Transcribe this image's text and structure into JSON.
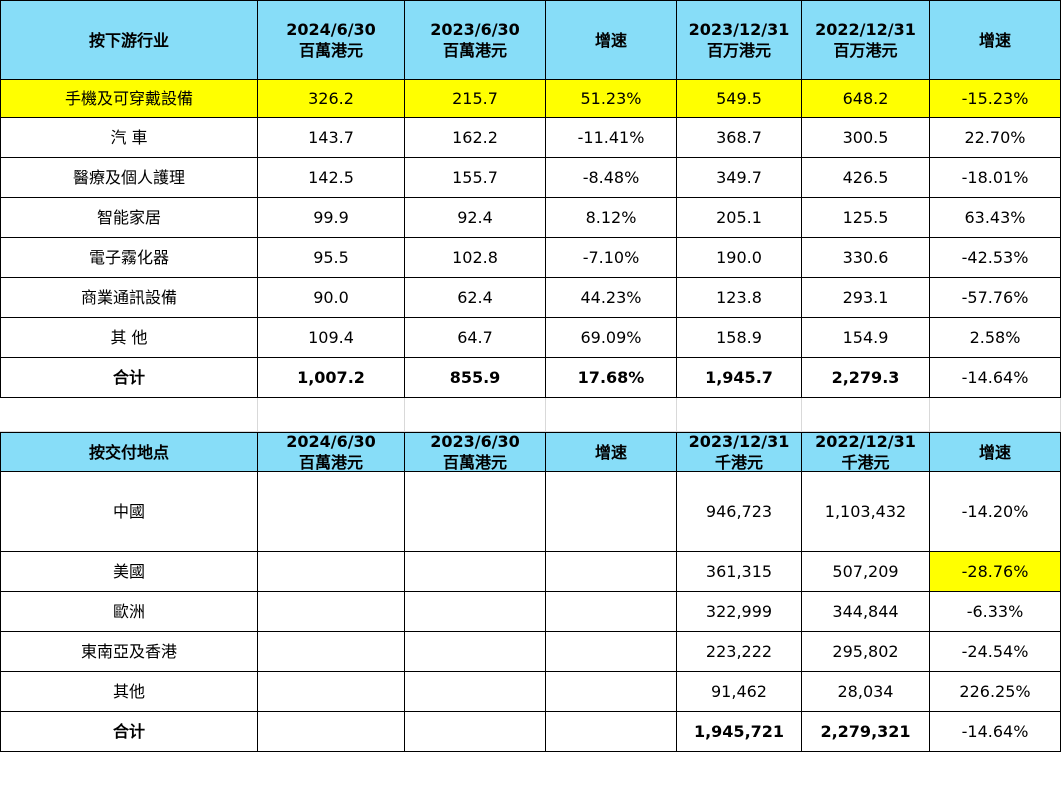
{
  "table1": {
    "headers": [
      {
        "l1": "按下游行业",
        "l2": ""
      },
      {
        "l1": "2024/6/30",
        "l2": "百萬港元"
      },
      {
        "l1": "2023/6/30",
        "l2": "百萬港元"
      },
      {
        "l1": "增速",
        "l2": ""
      },
      {
        "l1": "2023/12/31",
        "l2": "百万港元"
      },
      {
        "l1": "2022/12/31",
        "l2": "百万港元"
      },
      {
        "l1": "增速",
        "l2": ""
      }
    ],
    "rows": [
      {
        "cells": [
          "手機及可穿戴設備",
          "326.2",
          "215.7",
          "51.23%",
          "549.5",
          "648.2",
          "-15.23%"
        ]
      },
      {
        "cells": [
          "汽 車",
          "143.7",
          "162.2",
          "-11.41%",
          "368.7",
          "300.5",
          "22.70%"
        ]
      },
      {
        "cells": [
          "醫療及個人護理",
          "142.5",
          "155.7",
          "-8.48%",
          "349.7",
          "426.5",
          "-18.01%"
        ]
      },
      {
        "cells": [
          "智能家居",
          "99.9",
          "92.4",
          "8.12%",
          "205.1",
          "125.5",
          "63.43%"
        ]
      },
      {
        "cells": [
          "電子霧化器",
          "95.5",
          "102.8",
          "-7.10%",
          "190.0",
          "330.6",
          "-42.53%"
        ]
      },
      {
        "cells": [
          "商業通訊設備",
          "90.0",
          "62.4",
          "44.23%",
          "123.8",
          "293.1",
          "-57.76%"
        ]
      },
      {
        "cells": [
          "其 他",
          "109.4",
          "64.7",
          "69.09%",
          "158.9",
          "154.9",
          "2.58%"
        ]
      },
      {
        "cells": [
          "合计",
          "1,007.2",
          "855.9",
          "17.68%",
          "1,945.7",
          "2,279.3",
          "-14.64%"
        ]
      }
    ]
  },
  "table2": {
    "headers": [
      {
        "l1": "按交付地点",
        "l2": ""
      },
      {
        "l1": "2024/6/30",
        "l2": "百萬港元"
      },
      {
        "l1": "2023/6/30",
        "l2": "百萬港元"
      },
      {
        "l1": "增速",
        "l2": ""
      },
      {
        "l1": "2023/12/31",
        "l2": "千港元"
      },
      {
        "l1": "2022/12/31",
        "l2": "千港元"
      },
      {
        "l1": "增速",
        "l2": ""
      }
    ],
    "rows": [
      {
        "cells": [
          "中國",
          "",
          "",
          "",
          "946,723",
          "1,103,432",
          "-14.20%"
        ]
      },
      {
        "cells": [
          "美國",
          "",
          "",
          "",
          "361,315",
          "507,209",
          "-28.76%"
        ]
      },
      {
        "cells": [
          "歐洲",
          "",
          "",
          "",
          "322,999",
          "344,844",
          "-6.33%"
        ]
      },
      {
        "cells": [
          "東南亞及香港",
          "",
          "",
          "",
          "223,222",
          "295,802",
          "-24.54%"
        ]
      },
      {
        "cells": [
          "其他",
          "",
          "",
          "",
          "91,462",
          "28,034",
          "226.25%"
        ]
      },
      {
        "cells": [
          "合计",
          "",
          "",
          "",
          "1,945,721",
          "2,279,321",
          "-14.64%"
        ]
      }
    ]
  },
  "colors": {
    "header_bg": "#87ddf8",
    "highlight": "#ffff00",
    "border": "#000000"
  }
}
